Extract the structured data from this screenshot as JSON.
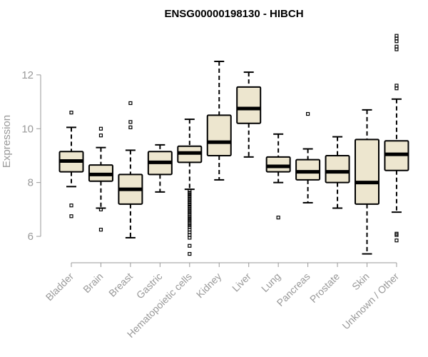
{
  "chart_data": {
    "type": "boxplot",
    "title": "ENSG00000198130 - HIBCH",
    "xlabel": "",
    "ylabel": "Expression",
    "ylim": [
      5.1,
      13.8
    ],
    "yticks": [
      6,
      8,
      10,
      12
    ],
    "box_fill": "#EDE6CF",
    "box_stroke": "#000000",
    "categories": [
      "Bladder",
      "Brain",
      "Breast",
      "Gastric",
      "Hematopoietic cells",
      "Kidney",
      "Liver",
      "Lung",
      "Pancreas",
      "Prostate",
      "Skin",
      "Unknown / Other"
    ],
    "boxes": [
      {
        "whisker_low": 7.85,
        "q1": 8.4,
        "median": 8.8,
        "q3": 9.15,
        "whisker_high": 10.05,
        "outliers": [
          10.6,
          7.15,
          6.75
        ]
      },
      {
        "whisker_low": 7.05,
        "q1": 8.05,
        "median": 8.3,
        "q3": 8.65,
        "whisker_high": 9.3,
        "outliers": [
          10.0,
          9.75,
          7.0,
          6.25
        ]
      },
      {
        "whisker_low": 5.95,
        "q1": 7.2,
        "median": 7.75,
        "q3": 8.3,
        "whisker_high": 9.2,
        "outliers": [
          10.95,
          10.25,
          10.05
        ]
      },
      {
        "whisker_low": 7.65,
        "q1": 8.3,
        "median": 8.75,
        "q3": 9.15,
        "whisker_high": 9.4,
        "outliers": []
      },
      {
        "whisker_low": 7.75,
        "q1": 8.75,
        "median": 9.1,
        "q3": 9.35,
        "whisker_high": 10.35,
        "outliers": [
          7.7,
          7.62,
          7.55,
          7.48,
          7.4,
          7.33,
          7.25,
          7.18,
          7.1,
          7.03,
          6.95,
          6.88,
          6.8,
          6.72,
          6.65,
          6.58,
          6.5,
          6.42,
          6.35,
          6.25,
          6.15,
          6.05,
          5.95,
          5.65,
          5.35
        ]
      },
      {
        "whisker_low": 8.1,
        "q1": 9.0,
        "median": 9.5,
        "q3": 10.5,
        "whisker_high": 12.5,
        "outliers": []
      },
      {
        "whisker_low": 8.95,
        "q1": 10.2,
        "median": 10.75,
        "q3": 11.55,
        "whisker_high": 12.1,
        "outliers": []
      },
      {
        "whisker_low": 8.0,
        "q1": 8.4,
        "median": 8.6,
        "q3": 8.95,
        "whisker_high": 9.8,
        "outliers": [
          6.7
        ]
      },
      {
        "whisker_low": 7.25,
        "q1": 8.1,
        "median": 8.4,
        "q3": 8.85,
        "whisker_high": 9.25,
        "outliers": [
          10.55
        ]
      },
      {
        "whisker_low": 7.05,
        "q1": 8.0,
        "median": 8.4,
        "q3": 9.0,
        "whisker_high": 9.7,
        "outliers": []
      },
      {
        "whisker_low": 5.35,
        "q1": 7.2,
        "median": 8.0,
        "q3": 9.6,
        "whisker_high": 10.7,
        "outliers": []
      },
      {
        "whisker_low": 6.9,
        "q1": 8.45,
        "median": 9.05,
        "q3": 9.55,
        "whisker_high": 11.1,
        "outliers": [
          13.45,
          13.35,
          13.25,
          13.05,
          12.95,
          11.6,
          11.5,
          6.1,
          6.05,
          5.85
        ]
      }
    ]
  }
}
